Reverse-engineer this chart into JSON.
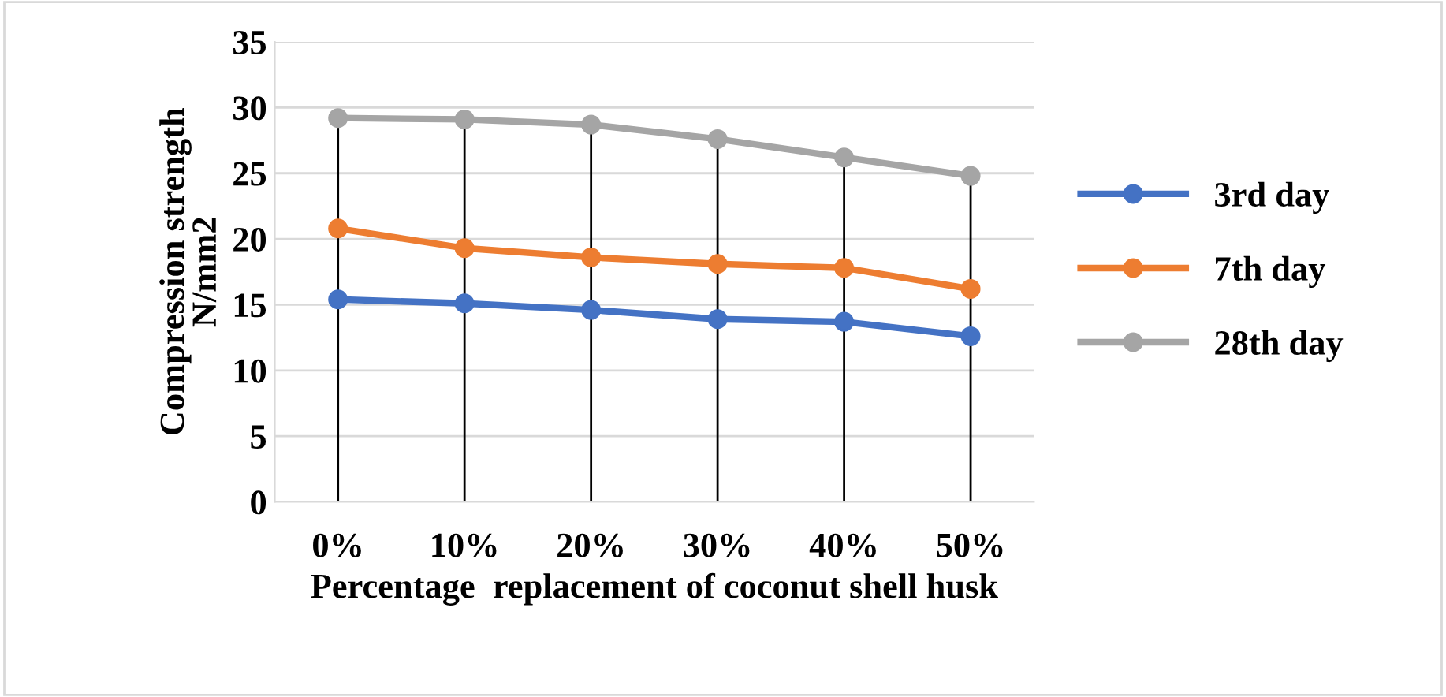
{
  "chart_data": {
    "type": "line",
    "xlabel": "Percentage  replacement of coconut shell husk",
    "ylabel": "Compression strength\nN/mm2",
    "categories": [
      "0%",
      "10%",
      "20%",
      "30%",
      "40%",
      "50%"
    ],
    "series": [
      {
        "name": "3rd day",
        "color": "#4472c4",
        "values": [
          15.4,
          15.1,
          14.6,
          13.9,
          13.7,
          12.6
        ]
      },
      {
        "name": "7th day",
        "color": "#ed7d31",
        "values": [
          20.8,
          19.3,
          18.6,
          18.1,
          17.8,
          16.2
        ]
      },
      {
        "name": "28th day",
        "color": "#a5a5a5",
        "values": [
          29.2,
          29.1,
          28.7,
          27.6,
          26.2,
          24.8
        ]
      }
    ],
    "ylim": [
      0,
      35
    ],
    "yticks": [
      0,
      5,
      10,
      15,
      20,
      25,
      30,
      35
    ],
    "grid": true,
    "legend": "right",
    "marker": "circle",
    "line_style": "solid"
  }
}
